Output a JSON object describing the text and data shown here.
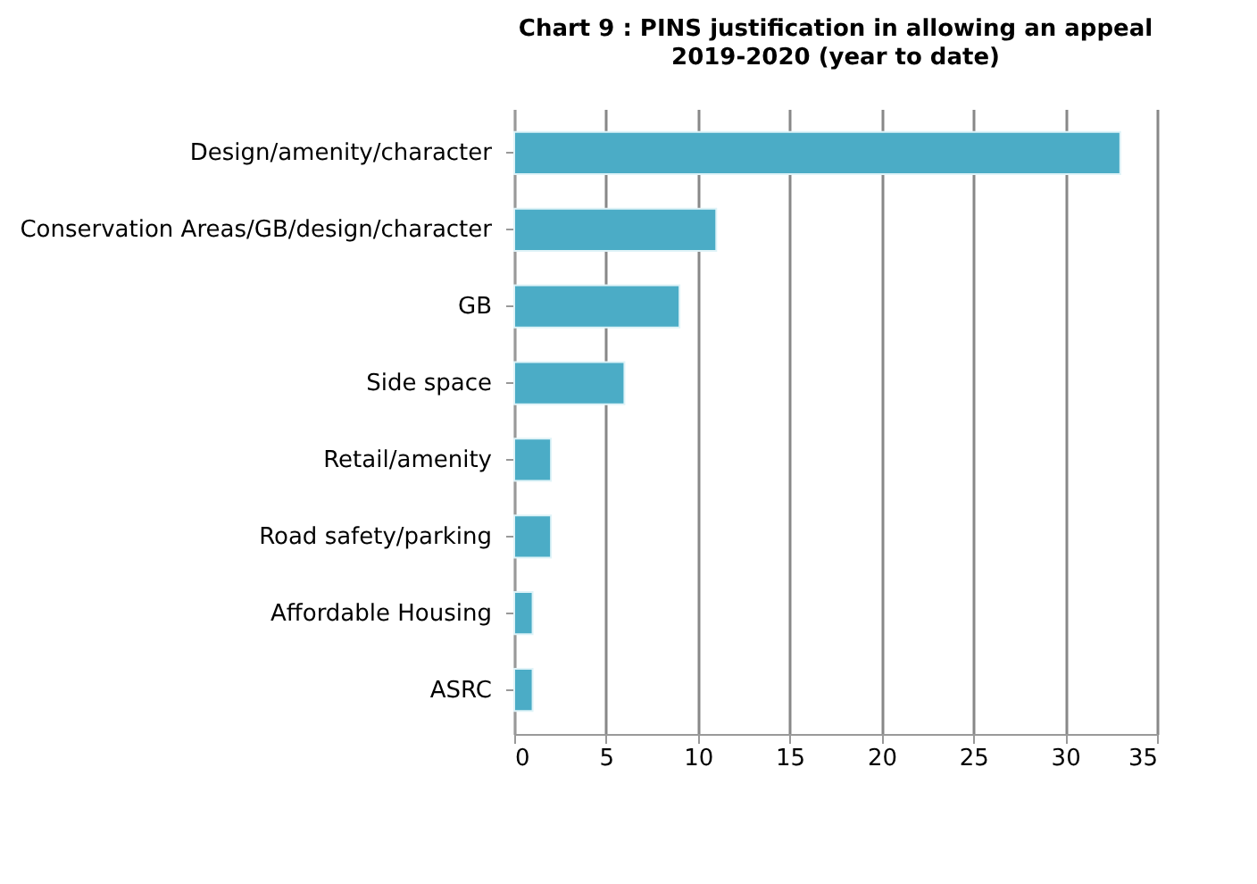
{
  "chart_data": {
    "type": "bar",
    "orientation": "horizontal",
    "title": "Chart 9 : PINS justification  in allowing an appeal",
    "subtitle": "2019-2020 (year to date)",
    "categories": [
      "Design/amenity/character",
      "Conservation Areas/GB/design/character",
      "GB",
      "Side space",
      "Retail/amenity",
      "Road safety/parking",
      "Affordable Housing",
      "ASRC"
    ],
    "values": [
      33,
      11,
      9,
      6,
      2,
      2,
      1,
      1
    ],
    "color": "#4bacc6",
    "xlim": [
      0,
      35
    ],
    "xticks": [
      0,
      5,
      10,
      15,
      20,
      25,
      30,
      35
    ],
    "grid": "x"
  }
}
